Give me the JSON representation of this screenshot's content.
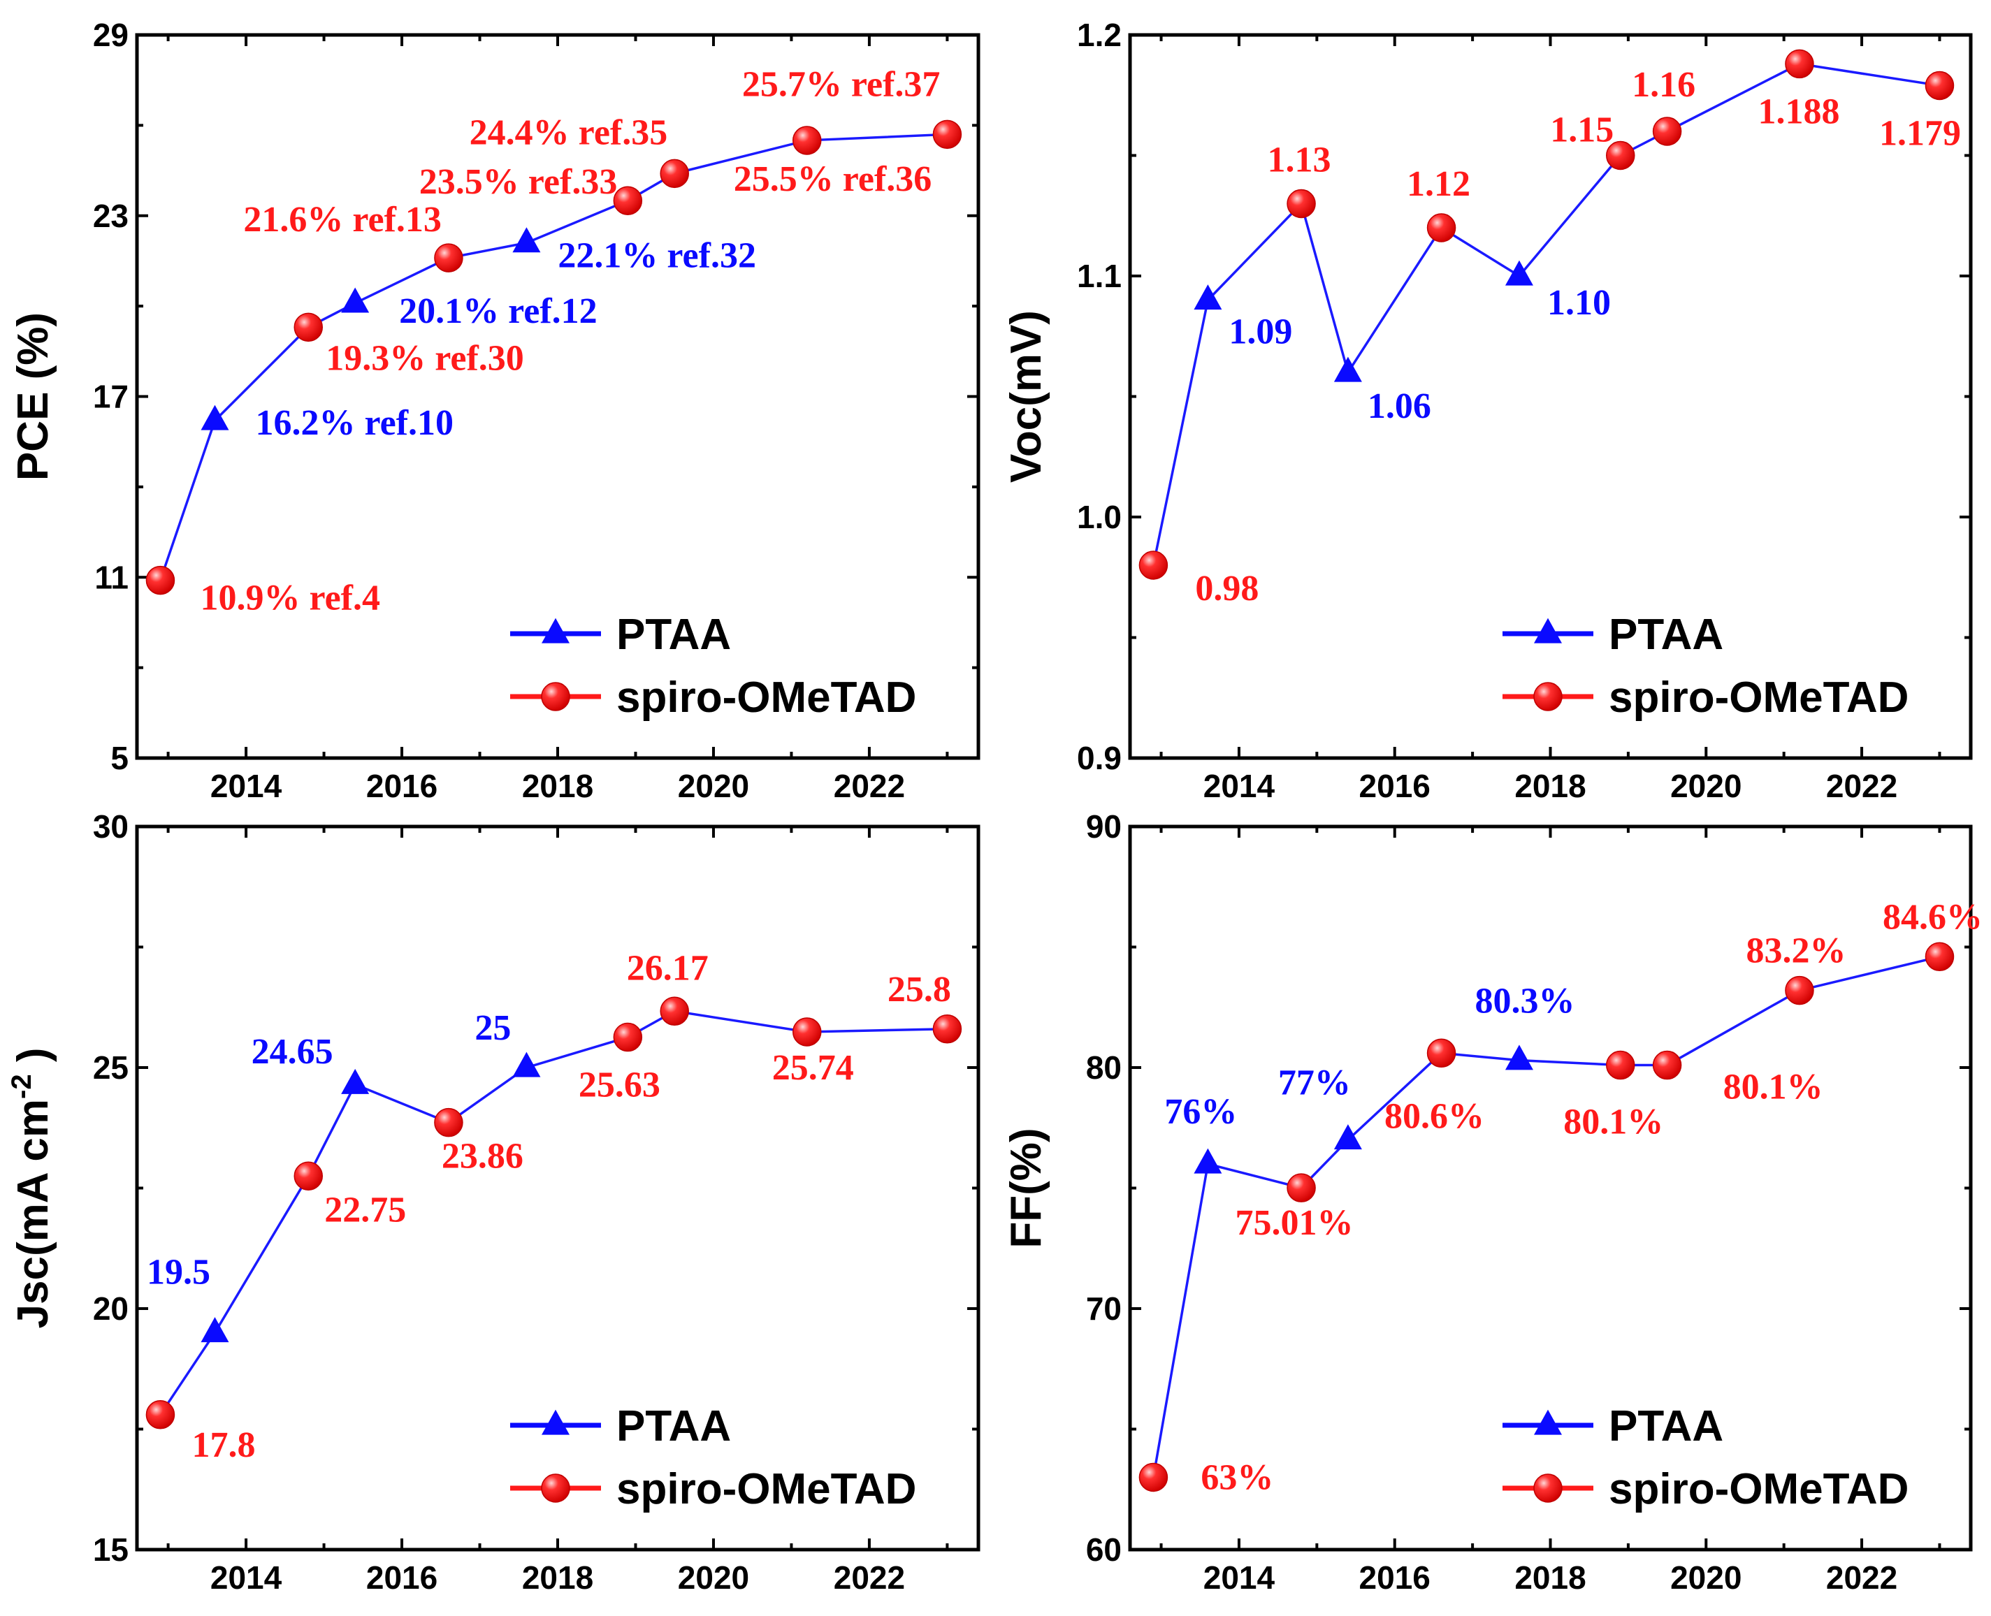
{
  "colors": {
    "PTAA": "#0a0aff",
    "spiro": "#ff1a1a",
    "spiro_highlight": "#ffc8c8",
    "line": "#1a1aff"
  },
  "legend": {
    "position": "bottom-right",
    "entries": [
      "PTAA",
      "spiro-OMeTAD"
    ]
  },
  "chart_data": [
    {
      "type": "line",
      "ylabel": "PCE (%)",
      "xlim": [
        2012.6,
        2023.4
      ],
      "ylim": [
        5,
        29
      ],
      "xticks": [
        2014,
        2016,
        2018,
        2020,
        2022
      ],
      "yticks": [
        5,
        11,
        17,
        23,
        29
      ],
      "points": [
        {
          "x": 2012.9,
          "y": 10.9,
          "series": "spiro-OMeTAD",
          "label": "10.9% ref.4"
        },
        {
          "x": 2013.6,
          "y": 16.2,
          "series": "PTAA",
          "label": "16.2% ref.10"
        },
        {
          "x": 2014.8,
          "y": 19.3,
          "series": "spiro-OMeTAD",
          "label": "19.3% ref.30"
        },
        {
          "x": 2015.4,
          "y": 20.1,
          "series": "PTAA",
          "label": "20.1% ref.12"
        },
        {
          "x": 2016.6,
          "y": 21.6,
          "series": "spiro-OMeTAD",
          "label": "21.6% ref.13"
        },
        {
          "x": 2017.6,
          "y": 22.1,
          "series": "PTAA",
          "label": "22.1% ref.32"
        },
        {
          "x": 2018.9,
          "y": 23.5,
          "series": "spiro-OMeTAD",
          "label": "23.5% ref.33"
        },
        {
          "x": 2019.5,
          "y": 24.4,
          "series": "spiro-OMeTAD",
          "label": "24.4% ref.35"
        },
        {
          "x": 2021.2,
          "y": 25.5,
          "series": "spiro-OMeTAD",
          "label": "25.5% ref.36"
        },
        {
          "x": 2023.0,
          "y": 25.7,
          "series": "spiro-OMeTAD",
          "label": "25.7% ref.37"
        }
      ]
    },
    {
      "type": "line",
      "ylabel": "Voc(mV)",
      "xlim": [
        2012.6,
        2023.4
      ],
      "ylim": [
        0.9,
        1.2
      ],
      "xticks": [
        2014,
        2016,
        2018,
        2020,
        2022
      ],
      "yticks": [
        "0.9",
        "1.0",
        "1.1",
        "1.2"
      ],
      "points": [
        {
          "x": 2012.9,
          "y": 0.98,
          "series": "spiro-OMeTAD",
          "label": "0.98"
        },
        {
          "x": 2013.6,
          "y": 1.09,
          "series": "PTAA",
          "label": "1.09"
        },
        {
          "x": 2014.8,
          "y": 1.13,
          "series": "spiro-OMeTAD",
          "label": "1.13"
        },
        {
          "x": 2015.4,
          "y": 1.06,
          "series": "PTAA",
          "label": "1.06"
        },
        {
          "x": 2016.6,
          "y": 1.12,
          "series": "spiro-OMeTAD",
          "label": "1.12"
        },
        {
          "x": 2017.6,
          "y": 1.1,
          "series": "PTAA",
          "label": "1.10"
        },
        {
          "x": 2018.9,
          "y": 1.15,
          "series": "spiro-OMeTAD",
          "label": "1.15"
        },
        {
          "x": 2019.5,
          "y": 1.16,
          "series": "spiro-OMeTAD",
          "label": "1.16"
        },
        {
          "x": 2021.2,
          "y": 1.188,
          "series": "spiro-OMeTAD",
          "label": "1.188"
        },
        {
          "x": 2023.0,
          "y": 1.179,
          "series": "spiro-OMeTAD",
          "label": "1.179"
        }
      ]
    },
    {
      "type": "line",
      "ylabel": "Jsc(mA cm",
      "ylabel_sup": "-2",
      "ylabel_close": " )",
      "xlim": [
        2012.6,
        2023.4
      ],
      "ylim": [
        15,
        30
      ],
      "xticks": [
        2014,
        2016,
        2018,
        2020,
        2022
      ],
      "yticks": [
        15,
        20,
        25,
        30
      ],
      "points": [
        {
          "x": 2012.9,
          "y": 17.8,
          "series": "spiro-OMeTAD",
          "label": "17.8"
        },
        {
          "x": 2013.6,
          "y": 19.5,
          "series": "PTAA",
          "label": "19.5"
        },
        {
          "x": 2014.8,
          "y": 22.75,
          "series": "spiro-OMeTAD",
          "label": "22.75"
        },
        {
          "x": 2015.4,
          "y": 24.65,
          "series": "PTAA",
          "label": "24.65"
        },
        {
          "x": 2016.6,
          "y": 23.86,
          "series": "spiro-OMeTAD",
          "label": "23.86"
        },
        {
          "x": 2017.6,
          "y": 25,
          "series": "PTAA",
          "label": "25"
        },
        {
          "x": 2018.9,
          "y": 25.63,
          "series": "spiro-OMeTAD",
          "label": "25.63"
        },
        {
          "x": 2019.5,
          "y": 26.17,
          "series": "spiro-OMeTAD",
          "label": "26.17"
        },
        {
          "x": 2021.2,
          "y": 25.74,
          "series": "spiro-OMeTAD",
          "label": "25.74"
        },
        {
          "x": 2023.0,
          "y": 25.8,
          "series": "spiro-OMeTAD",
          "label": "25.8"
        }
      ]
    },
    {
      "type": "line",
      "ylabel": "FF(%)",
      "xlim": [
        2012.6,
        2023.4
      ],
      "ylim": [
        60,
        90
      ],
      "xticks": [
        2014,
        2016,
        2018,
        2020,
        2022
      ],
      "yticks": [
        60,
        70,
        80,
        90
      ],
      "points": [
        {
          "x": 2012.9,
          "y": 63,
          "series": "spiro-OMeTAD",
          "label": "63%"
        },
        {
          "x": 2013.6,
          "y": 76,
          "series": "PTAA",
          "label": "76%"
        },
        {
          "x": 2014.8,
          "y": 75.01,
          "series": "spiro-OMeTAD",
          "label": "75.01%"
        },
        {
          "x": 2015.4,
          "y": 77,
          "series": "PTAA",
          "label": "77%"
        },
        {
          "x": 2016.6,
          "y": 80.6,
          "series": "spiro-OMeTAD",
          "label": "80.6%"
        },
        {
          "x": 2017.6,
          "y": 80.3,
          "series": "PTAA",
          "label": "80.3%"
        },
        {
          "x": 2018.9,
          "y": 80.1,
          "series": "spiro-OMeTAD",
          "label": "80.1%"
        },
        {
          "x": 2019.5,
          "y": 80.1,
          "series": "spiro-OMeTAD",
          "label": "80.1%"
        },
        {
          "x": 2021.2,
          "y": 83.2,
          "series": "spiro-OMeTAD",
          "label": "83.2%"
        },
        {
          "x": 2023.0,
          "y": 84.6,
          "series": "spiro-OMeTAD",
          "label": "84.6%"
        }
      ]
    }
  ]
}
